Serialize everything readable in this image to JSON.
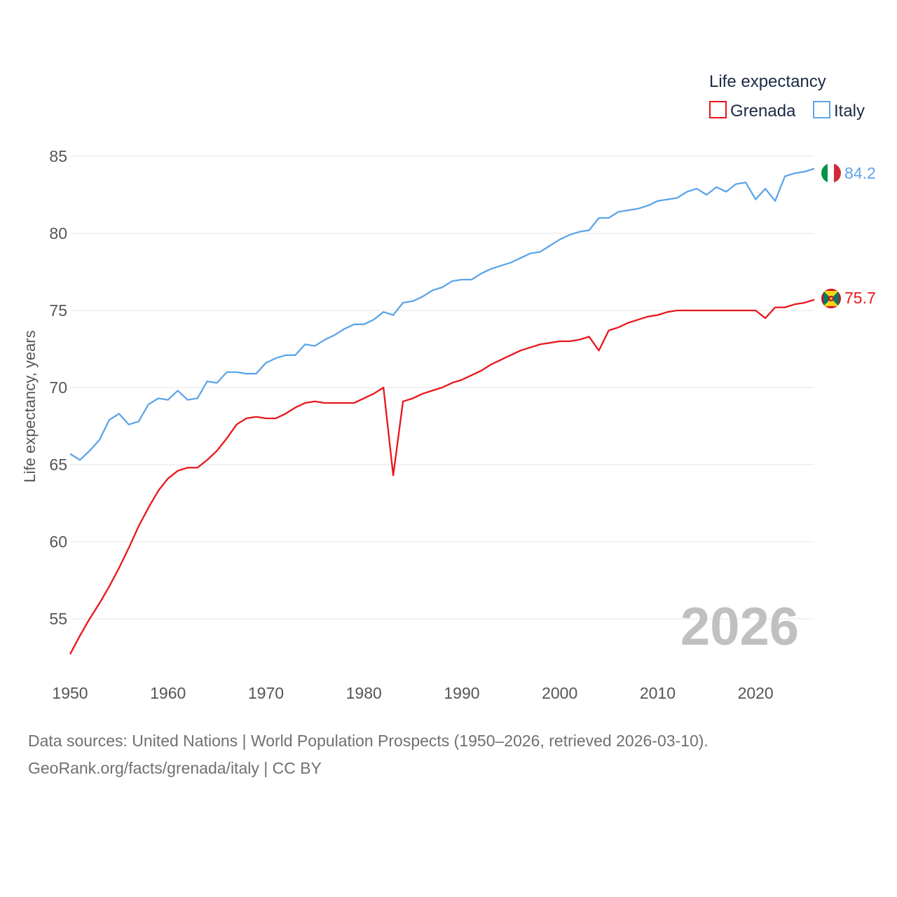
{
  "chart_data": {
    "type": "line",
    "ylabel": "Life expectancy, years",
    "xlabel": "",
    "xlim": [
      1950,
      2026
    ],
    "ylim": [
      51.5,
      86.5
    ],
    "x_ticks": [
      1950,
      1960,
      1970,
      1980,
      1990,
      2000,
      2010,
      2020
    ],
    "y_ticks": [
      55,
      60,
      65,
      70,
      75,
      80,
      85
    ],
    "grid": true,
    "legend": {
      "title": "Life expectancy",
      "position": "top-right"
    },
    "current_year_label": "2026",
    "x": [
      1950,
      1951,
      1952,
      1953,
      1954,
      1955,
      1956,
      1957,
      1958,
      1959,
      1960,
      1961,
      1962,
      1963,
      1964,
      1965,
      1966,
      1967,
      1968,
      1969,
      1970,
      1971,
      1972,
      1973,
      1974,
      1975,
      1976,
      1977,
      1978,
      1979,
      1980,
      1981,
      1982,
      1983,
      1984,
      1985,
      1986,
      1987,
      1988,
      1989,
      1990,
      1991,
      1992,
      1993,
      1994,
      1995,
      1996,
      1997,
      1998,
      1999,
      2000,
      2001,
      2002,
      2003,
      2004,
      2005,
      2006,
      2007,
      2008,
      2009,
      2010,
      2011,
      2012,
      2013,
      2014,
      2015,
      2016,
      2017,
      2018,
      2019,
      2020,
      2021,
      2022,
      2023,
      2024,
      2025,
      2026
    ],
    "series": [
      {
        "name": "Grenada",
        "color": "#e8161b",
        "end_label": "75.7",
        "values": [
          52.7,
          53.9,
          55.0,
          56.0,
          57.1,
          58.3,
          59.6,
          61.0,
          62.2,
          63.3,
          64.1,
          64.6,
          64.8,
          64.8,
          65.3,
          65.9,
          66.7,
          67.6,
          68.0,
          68.1,
          68.0,
          68.0,
          68.3,
          68.7,
          69.0,
          69.1,
          69.0,
          69.0,
          69.0,
          69.0,
          69.3,
          69.6,
          70.0,
          64.3,
          69.1,
          69.3,
          69.6,
          69.8,
          70.0,
          70.3,
          70.5,
          70.8,
          71.1,
          71.5,
          71.8,
          72.1,
          72.4,
          72.6,
          72.8,
          72.9,
          73.0,
          73.0,
          73.1,
          73.3,
          72.4,
          73.7,
          73.9,
          74.2,
          74.4,
          74.6,
          74.7,
          74.9,
          75.0,
          75.0,
          75.0,
          75.0,
          75.0,
          75.0,
          75.0,
          75.0,
          75.0,
          74.5,
          75.2,
          75.2,
          75.4,
          75.5,
          75.7
        ]
      },
      {
        "name": "Italy",
        "color": "#5da5e8",
        "end_label": "84.2",
        "values": [
          65.7,
          65.3,
          65.9,
          66.6,
          67.9,
          68.3,
          67.6,
          67.8,
          68.9,
          69.3,
          69.2,
          69.8,
          69.2,
          69.3,
          70.4,
          70.3,
          71.0,
          71.0,
          70.9,
          70.9,
          71.6,
          71.9,
          72.1,
          72.1,
          72.8,
          72.7,
          73.1,
          73.4,
          73.8,
          74.1,
          74.1,
          74.4,
          74.9,
          74.7,
          75.5,
          75.6,
          75.9,
          76.3,
          76.5,
          76.9,
          77.0,
          77.0,
          77.4,
          77.7,
          77.9,
          78.1,
          78.4,
          78.7,
          78.8,
          79.2,
          79.6,
          79.9,
          80.1,
          80.2,
          81.0,
          81.0,
          81.4,
          81.5,
          81.6,
          81.8,
          82.1,
          82.2,
          82.3,
          82.7,
          82.9,
          82.5,
          83.0,
          82.7,
          83.2,
          83.3,
          82.2,
          82.9,
          82.1,
          83.7,
          83.9,
          84.0,
          84.2
        ]
      }
    ]
  },
  "footer": {
    "line1": "Data sources: United Nations | World Population Prospects (1950–2026, retrieved 2026-03-10).",
    "line2": "GeoRank.org/facts/grenada/italy | CC BY"
  },
  "colors": {
    "grenada": "#e8161b",
    "italy": "#5da5e8",
    "grid": "#e6e6e6",
    "axis_text": "#555555",
    "year_watermark": "#c0c0c0"
  },
  "icons": {
    "grenada_marker": "grenada-flag-icon",
    "italy_marker": "italy-flag-icon"
  }
}
